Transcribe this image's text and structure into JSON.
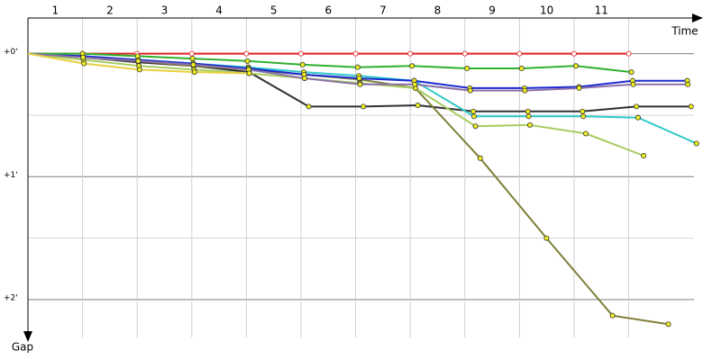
{
  "chart_data": {
    "type": "line",
    "x_title": "Time",
    "y_title": "Gap",
    "x": [
      0,
      1,
      2,
      3,
      4,
      5,
      6,
      7,
      8,
      9,
      10,
      11,
      12
    ],
    "xlim": [
      0,
      12.36
    ],
    "xticks": [
      1,
      2,
      3,
      4,
      5,
      6,
      7,
      8,
      9,
      10,
      11
    ],
    "ylim": [
      -0.29,
      2.33
    ],
    "yticks": [
      {
        "value": 0,
        "label": "+0'"
      },
      {
        "value": 1,
        "label": "+1'"
      },
      {
        "value": 2,
        "label": "+2'"
      }
    ],
    "minor_yticks": [
      0.5,
      1.5
    ],
    "grid": true,
    "series": [
      {
        "color": "#e02020",
        "values": [
          0,
          0,
          0,
          0,
          0,
          0,
          0,
          0,
          0,
          0,
          0,
          0,
          null
        ]
      },
      {
        "color": "#303030",
        "values": [
          0,
          0.03,
          0.07,
          0.1,
          0.15,
          0.43,
          0.43,
          0.42,
          0.47,
          0.47,
          0.47,
          0.43,
          0.43
        ]
      },
      {
        "color": "#7f7f3a",
        "values": [
          0,
          0.03,
          0.06,
          0.1,
          0.13,
          0.17,
          0.21,
          0.28,
          0.85,
          1.5,
          2.13,
          2.2,
          null
        ]
      },
      {
        "color": "#30c8c8",
        "values": [
          0,
          0.02,
          0.05,
          0.08,
          0.11,
          0.15,
          0.18,
          0.22,
          0.51,
          0.51,
          0.51,
          0.52,
          0.73
        ]
      },
      {
        "color": "#a8cc60",
        "values": [
          0,
          0.05,
          0.1,
          0.13,
          0.16,
          0.2,
          0.24,
          0.28,
          0.59,
          0.58,
          0.65,
          0.83,
          null
        ]
      },
      {
        "color": "#1a2ad0",
        "values": [
          0,
          0.02,
          0.05,
          0.08,
          0.12,
          0.17,
          0.2,
          0.22,
          0.28,
          0.28,
          0.27,
          0.22,
          0.22
        ]
      },
      {
        "color": "#30b030",
        "values": [
          0,
          0,
          0.02,
          0.04,
          0.06,
          0.09,
          0.11,
          0.1,
          0.12,
          0.12,
          0.1,
          0.15,
          null
        ]
      },
      {
        "color": "#8a70a8",
        "values": [
          0,
          0.03,
          0.06,
          0.09,
          0.13,
          0.2,
          0.25,
          0.25,
          0.3,
          0.3,
          0.28,
          0.25,
          0.25
        ]
      },
      {
        "color": "#e8d040",
        "values": [
          0,
          0.08,
          0.13,
          0.15,
          0.16,
          null,
          null,
          null,
          null,
          null,
          null,
          null,
          null
        ]
      }
    ]
  }
}
